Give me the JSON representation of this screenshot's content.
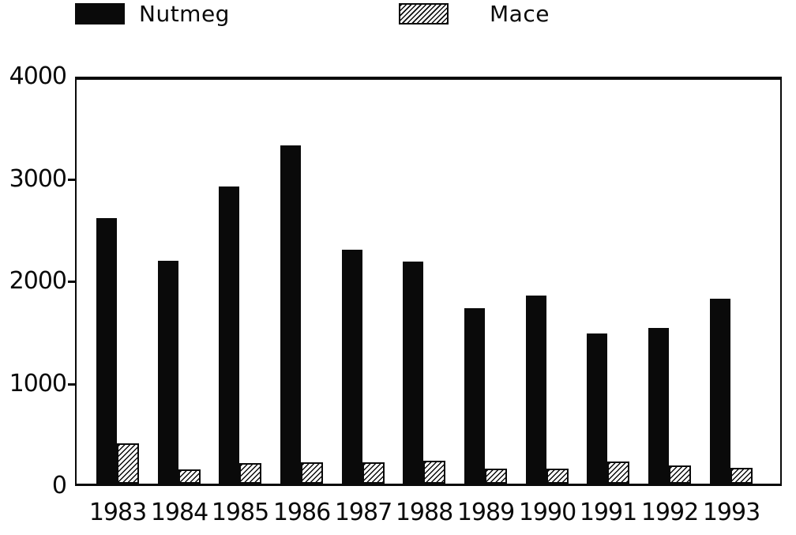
{
  "chart_data": {
    "type": "bar",
    "title": "",
    "xlabel": "",
    "ylabel": "",
    "categories": [
      "1983",
      "1984",
      "1985",
      "1986",
      "1987",
      "1988",
      "1989",
      "1990",
      "1991",
      "1992",
      "1993"
    ],
    "series": [
      {
        "name": "Nutmeg",
        "style": "solid-black",
        "color": "#0a0a0a",
        "values": [
          2630,
          2210,
          2940,
          3350,
          2320,
          2200,
          1740,
          1860,
          1490,
          1540,
          1830
        ]
      },
      {
        "name": "Mace",
        "style": "diagonal-hatch",
        "color": "#0a0a0a",
        "values": [
          400,
          140,
          200,
          210,
          210,
          230,
          150,
          150,
          220,
          180,
          160
        ]
      }
    ],
    "ylim": [
      0,
      4000
    ],
    "yticks": [
      0,
      1000,
      2000,
      3000,
      4000
    ],
    "grid": false,
    "legend_position": "top",
    "background": "#ffffff"
  }
}
